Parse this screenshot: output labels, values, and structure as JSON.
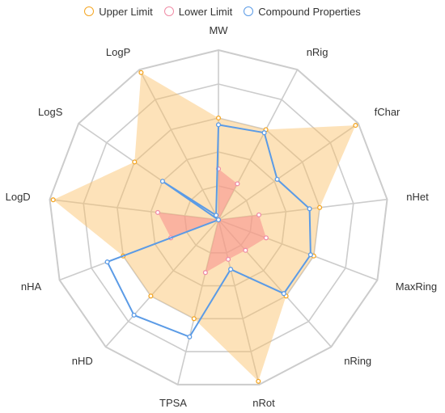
{
  "chart_data": {
    "type": "radar",
    "axes": [
      "MW",
      "nRig",
      "fChar",
      "nHet",
      "MaxRing",
      "nRing",
      "nRot",
      "TPSA",
      "nHD",
      "nHA",
      "LogD",
      "LogS",
      "LogP"
    ],
    "rmax": 1,
    "ring_count": 5,
    "series": [
      {
        "name": "Upper Limit",
        "color": "#F5A623",
        "fill": "rgba(250, 190, 100, 0.45)",
        "fill_area": true,
        "values": [
          0.6,
          0.6,
          0.98,
          0.6,
          0.6,
          0.6,
          0.98,
          0.6,
          0.6,
          0.6,
          0.98,
          0.6,
          0.98
        ]
      },
      {
        "name": "Lower Limit",
        "color": "#F08CA6",
        "fill": "rgba(248, 140, 140, 0.55)",
        "fill_area": true,
        "values": [
          0.3,
          0.24,
          0.0,
          0.24,
          0.3,
          0.24,
          0.24,
          0.32,
          0.0,
          0.3,
          0.36,
          0.0,
          0.0
        ]
      },
      {
        "name": "Compound Properties",
        "color": "#5B9BE6",
        "fill": "none",
        "fill_area": false,
        "values": [
          0.56,
          0.58,
          0.42,
          0.54,
          0.58,
          0.58,
          0.3,
          0.71,
          0.75,
          0.7,
          0.0,
          0.4,
          0.03
        ]
      }
    ]
  }
}
